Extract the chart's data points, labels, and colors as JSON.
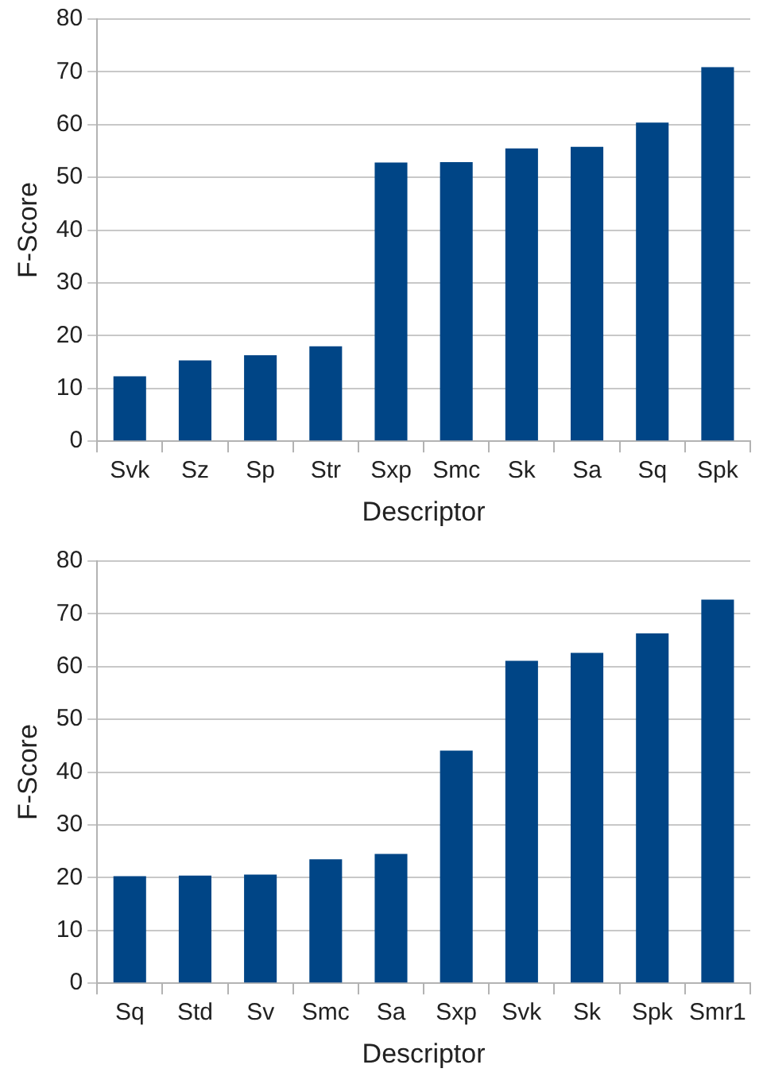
{
  "chart_data": [
    {
      "type": "bar",
      "categories": [
        "Svk",
        "Sz",
        "Sp",
        "Str",
        "Sxp",
        "Smc",
        "Sk",
        "Sa",
        "Sq",
        "Spk"
      ],
      "values": [
        12.3,
        15.3,
        16.3,
        18.0,
        52.8,
        52.9,
        55.5,
        55.8,
        60.4,
        70.9
      ],
      "color": "#004586",
      "xlabel": "Descriptor",
      "ylabel": "F-Score",
      "ylim": [
        0,
        80
      ],
      "yticks": [
        0,
        10,
        20,
        30,
        40,
        50,
        60,
        70,
        80
      ],
      "grid": "y"
    },
    {
      "type": "bar",
      "categories": [
        "Sq",
        "Std",
        "Sv",
        "Smc",
        "Sa",
        "Sxp",
        "Svk",
        "Sk",
        "Spk",
        "Smr1"
      ],
      "values": [
        20.3,
        20.4,
        20.6,
        23.5,
        24.5,
        44.1,
        61.1,
        62.6,
        66.3,
        72.7
      ],
      "color": "#004586",
      "xlabel": "Descriptor",
      "ylabel": "F-Score",
      "ylim": [
        0,
        80
      ],
      "yticks": [
        0,
        10,
        20,
        30,
        40,
        50,
        60,
        70,
        80
      ],
      "grid": "y"
    }
  ]
}
